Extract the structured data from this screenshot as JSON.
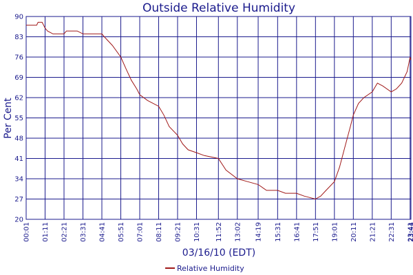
{
  "chart_data": {
    "type": "line",
    "title": "Outside Relative Humidity",
    "xlabel": "03/16/10 (EDT)",
    "ylabel": "Per Cent",
    "ylim": [
      20,
      90
    ],
    "yticks": [
      20,
      27,
      34,
      41,
      48,
      55,
      62,
      69,
      76,
      83,
      90
    ],
    "xticks": [
      "00:01",
      "01:11",
      "02:21",
      "03:31",
      "04:41",
      "05:51",
      "07:01",
      "08:11",
      "09:21",
      "10:31",
      "11:52",
      "13:02",
      "14:19",
      "15:31",
      "16:41",
      "17:51",
      "19:01",
      "20:11",
      "21:21",
      "22:31",
      "23:41",
      "23:44"
    ],
    "grid": true,
    "legend_position": "bottom-center",
    "colors": {
      "series": "#a01818",
      "grid": "#1a1a8c",
      "text": "#1a1a8c",
      "frame": "#1a1a8c"
    },
    "series": [
      {
        "name": "Relative Humidity",
        "x": [
          "00:01",
          "00:40",
          "00:45",
          "01:00",
          "01:11",
          "01:20",
          "01:40",
          "02:21",
          "02:30",
          "02:45",
          "03:10",
          "03:31",
          "04:00",
          "04:41",
          "04:50",
          "05:20",
          "05:51",
          "06:10",
          "06:30",
          "06:50",
          "07:01",
          "07:30",
          "08:11",
          "08:30",
          "08:50",
          "09:21",
          "09:40",
          "10:00",
          "10:31",
          "11:00",
          "11:52",
          "12:20",
          "13:02",
          "13:40",
          "14:19",
          "14:50",
          "15:31",
          "16:00",
          "16:41",
          "17:10",
          "17:51",
          "18:10",
          "18:30",
          "19:01",
          "19:20",
          "19:40",
          "20:00",
          "20:11",
          "20:30",
          "20:50",
          "21:21",
          "21:40",
          "22:00",
          "22:31",
          "22:50",
          "23:10",
          "23:30",
          "23:41",
          "23:44"
        ],
        "values": [
          87,
          87,
          88,
          88,
          86,
          85,
          84,
          84,
          85,
          85,
          85,
          84,
          84,
          84,
          83,
          80,
          76,
          72,
          68,
          65,
          63,
          61,
          59,
          56,
          52,
          49,
          46,
          44,
          43,
          42,
          41,
          37,
          34,
          33,
          32,
          30,
          30,
          29,
          29,
          28,
          27,
          28,
          30,
          33,
          38,
          45,
          52,
          56,
          60,
          62,
          64,
          67,
          66,
          64,
          65,
          67,
          71,
          76,
          75
        ]
      }
    ]
  }
}
